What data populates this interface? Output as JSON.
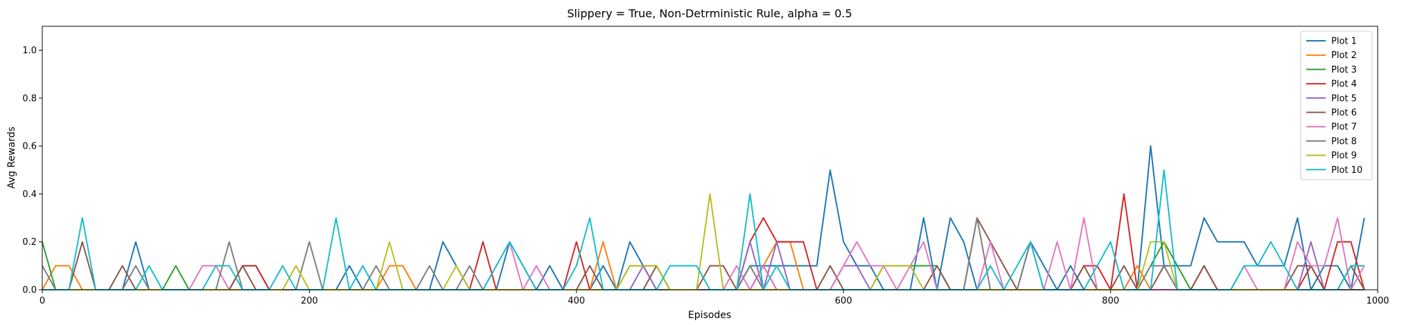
{
  "chart_data": {
    "type": "line",
    "title": "Slippery = True, Non-Detrministic Rule, alpha = 0.5",
    "xlabel": "Episodes",
    "ylabel": "Avg Rewards",
    "xlim": [
      0,
      1000
    ],
    "ylim": [
      0,
      1.1
    ],
    "xticks": [
      0,
      200,
      400,
      600,
      800,
      1000
    ],
    "yticks": [
      0.0,
      0.2,
      0.4,
      0.6,
      0.8,
      1.0
    ],
    "xtick_labels": [
      "0",
      "200",
      "400",
      "600",
      "800",
      "1000"
    ],
    "ytick_labels": [
      "0.0",
      "0.2",
      "0.4",
      "0.6",
      "0.8",
      "1.0"
    ],
    "grid": false,
    "legend_position": "top-right",
    "x": [
      0,
      10,
      20,
      30,
      40,
      50,
      60,
      70,
      80,
      90,
      100,
      110,
      120,
      130,
      140,
      150,
      160,
      170,
      180,
      190,
      200,
      210,
      220,
      230,
      240,
      250,
      260,
      270,
      280,
      290,
      300,
      310,
      320,
      330,
      340,
      350,
      360,
      370,
      380,
      390,
      400,
      410,
      420,
      430,
      440,
      450,
      460,
      470,
      480,
      490,
      500,
      510,
      520,
      530,
      540,
      550,
      560,
      570,
      580,
      590,
      600,
      610,
      620,
      630,
      640,
      650,
      660,
      670,
      680,
      690,
      700,
      710,
      720,
      730,
      740,
      750,
      760,
      770,
      780,
      790,
      800,
      810,
      820,
      830,
      840,
      850,
      860,
      870,
      880,
      890,
      900,
      910,
      920,
      930,
      940,
      950,
      960,
      970,
      980,
      990
    ],
    "series": [
      {
        "name": "Plot 1",
        "color": "#1f77b4",
        "values": [
          0,
          0,
          0,
          0,
          0,
          0,
          0,
          0.2,
          0,
          0,
          0,
          0,
          0,
          0,
          0,
          0.1,
          0.1,
          0,
          0,
          0,
          0,
          0,
          0,
          0.1,
          0,
          0,
          0,
          0,
          0,
          0,
          0.2,
          0.1,
          0,
          0,
          0,
          0.2,
          0.1,
          0,
          0.1,
          0,
          0,
          0,
          0.1,
          0,
          0.2,
          0.1,
          0.1,
          0,
          0,
          0,
          0,
          0,
          0,
          0.1,
          0.1,
          0.1,
          0.1,
          0.1,
          0.1,
          0.5,
          0.2,
          0.1,
          0.1,
          0,
          0,
          0,
          0.3,
          0,
          0.3,
          0.2,
          0,
          0,
          0,
          0,
          0.2,
          0.1,
          0,
          0.1,
          0,
          0,
          0,
          0,
          0,
          0.6,
          0.1,
          0.1,
          0.1,
          0.3,
          0.2,
          0.2,
          0.2,
          0.1,
          0.1,
          0.1,
          0.3,
          0,
          0.1,
          0.1,
          0,
          0.3
        ]
      },
      {
        "name": "Plot 2",
        "color": "#ff7f0e",
        "values": [
          0,
          0.1,
          0.1,
          0,
          0,
          0,
          0,
          0,
          0,
          0,
          0,
          0,
          0,
          0,
          0,
          0,
          0,
          0,
          0,
          0,
          0,
          0,
          0,
          0,
          0,
          0,
          0.1,
          0.1,
          0,
          0,
          0,
          0,
          0,
          0,
          0,
          0,
          0,
          0,
          0,
          0,
          0,
          0,
          0.2,
          0,
          0,
          0,
          0,
          0,
          0,
          0,
          0,
          0,
          0,
          0,
          0.1,
          0.2,
          0.2,
          0,
          0,
          0,
          0,
          0,
          0,
          0,
          0,
          0,
          0,
          0,
          0,
          0,
          0,
          0,
          0,
          0,
          0,
          0,
          0,
          0,
          0,
          0,
          0,
          0,
          0.1,
          0,
          0,
          0,
          0,
          0,
          0,
          0,
          0,
          0,
          0,
          0,
          0,
          0,
          0,
          0,
          0,
          0
        ]
      },
      {
        "name": "Plot 3",
        "color": "#2ca02c",
        "values": [
          0.2,
          0,
          0,
          0,
          0,
          0,
          0,
          0,
          0,
          0,
          0.1,
          0,
          0,
          0,
          0,
          0,
          0,
          0,
          0,
          0,
          0,
          0,
          0,
          0,
          0,
          0,
          0,
          0,
          0,
          0,
          0,
          0,
          0,
          0,
          0,
          0,
          0,
          0,
          0,
          0,
          0,
          0,
          0,
          0,
          0.1,
          0.1,
          0,
          0,
          0,
          0,
          0,
          0,
          0,
          0,
          0,
          0,
          0,
          0,
          0,
          0,
          0,
          0,
          0,
          0.1,
          0.1,
          0.1,
          0.1,
          0.1,
          0,
          0,
          0,
          0,
          0,
          0,
          0,
          0,
          0,
          0,
          0,
          0,
          0,
          0,
          0,
          0.1,
          0.2,
          0.1,
          0,
          0,
          0,
          0,
          0,
          0,
          0,
          0,
          0,
          0,
          0,
          0,
          0,
          0
        ]
      },
      {
        "name": "Plot 4",
        "color": "#d62728",
        "values": [
          0,
          0,
          0,
          0,
          0,
          0,
          0,
          0,
          0,
          0,
          0,
          0,
          0,
          0,
          0,
          0.1,
          0.1,
          0,
          0,
          0,
          0,
          0,
          0,
          0,
          0,
          0,
          0,
          0,
          0,
          0,
          0,
          0,
          0,
          0.2,
          0,
          0,
          0,
          0,
          0,
          0,
          0.2,
          0,
          0,
          0,
          0,
          0,
          0,
          0,
          0,
          0,
          0,
          0,
          0,
          0.2,
          0.3,
          0.2,
          0.2,
          0.2,
          0,
          0,
          0,
          0,
          0,
          0,
          0,
          0,
          0,
          0,
          0,
          0,
          0,
          0,
          0,
          0,
          0,
          0,
          0,
          0,
          0.1,
          0.1,
          0,
          0.4,
          0,
          0,
          0,
          0,
          0,
          0.1,
          0,
          0,
          0,
          0,
          0,
          0,
          0,
          0.1,
          0,
          0.2,
          0.2,
          0
        ]
      },
      {
        "name": "Plot 5",
        "color": "#9467bd",
        "values": [
          0,
          0,
          0,
          0,
          0,
          0,
          0,
          0,
          0,
          0,
          0,
          0,
          0,
          0,
          0,
          0,
          0,
          0,
          0,
          0,
          0,
          0,
          0,
          0,
          0,
          0,
          0,
          0,
          0,
          0,
          0,
          0,
          0,
          0,
          0,
          0,
          0,
          0,
          0,
          0,
          0,
          0,
          0,
          0,
          0,
          0.1,
          0,
          0,
          0,
          0,
          0,
          0,
          0,
          0.2,
          0,
          0.2,
          0,
          0,
          0,
          0,
          0.1,
          0.1,
          0,
          0,
          0,
          0,
          0,
          0,
          0,
          0,
          0,
          0,
          0,
          0,
          0,
          0,
          0,
          0,
          0,
          0,
          0,
          0,
          0,
          0,
          0,
          0,
          0,
          0,
          0,
          0,
          0,
          0,
          0,
          0,
          0,
          0.2,
          0,
          0,
          0,
          0
        ]
      },
      {
        "name": "Plot 6",
        "color": "#8c564b",
        "values": [
          0,
          0,
          0,
          0.2,
          0,
          0,
          0.1,
          0,
          0,
          0,
          0,
          0,
          0,
          0,
          0,
          0.1,
          0,
          0,
          0,
          0,
          0,
          0,
          0,
          0,
          0,
          0,
          0,
          0,
          0,
          0,
          0,
          0,
          0,
          0,
          0,
          0,
          0,
          0,
          0,
          0,
          0,
          0.1,
          0,
          0,
          0,
          0,
          0.1,
          0,
          0,
          0,
          0.1,
          0.1,
          0,
          0,
          0.1,
          0,
          0,
          0,
          0,
          0.1,
          0,
          0,
          0,
          0,
          0,
          0,
          0,
          0.1,
          0,
          0,
          0.3,
          0.2,
          0.1,
          0,
          0,
          0,
          0,
          0,
          0.1,
          0,
          0,
          0.1,
          0,
          0,
          0.1,
          0,
          0,
          0.1,
          0,
          0,
          0,
          0,
          0,
          0,
          0.1,
          0.1,
          0,
          0,
          0.1,
          0
        ]
      },
      {
        "name": "Plot 7",
        "color": "#e377c2",
        "values": [
          0,
          0,
          0,
          0,
          0,
          0,
          0,
          0,
          0,
          0,
          0,
          0,
          0.1,
          0.1,
          0,
          0,
          0,
          0,
          0,
          0,
          0,
          0,
          0,
          0,
          0,
          0,
          0,
          0,
          0,
          0,
          0,
          0,
          0,
          0,
          0.1,
          0.2,
          0,
          0.1,
          0,
          0,
          0,
          0,
          0,
          0,
          0,
          0,
          0,
          0,
          0,
          0,
          0,
          0,
          0.1,
          0,
          0.1,
          0,
          0,
          0,
          0,
          0,
          0.1,
          0.2,
          0.1,
          0.1,
          0,
          0.1,
          0.2,
          0,
          0,
          0,
          0,
          0.2,
          0,
          0,
          0,
          0,
          0.2,
          0,
          0.3,
          0,
          0,
          0,
          0,
          0,
          0,
          0,
          0,
          0,
          0,
          0,
          0.1,
          0,
          0,
          0,
          0.2,
          0.1,
          0.1,
          0.3,
          0,
          0.1
        ]
      },
      {
        "name": "Plot 8",
        "color": "#7f7f7f",
        "values": [
          0.1,
          0,
          0,
          0,
          0,
          0,
          0,
          0.1,
          0,
          0,
          0,
          0,
          0,
          0,
          0.2,
          0,
          0,
          0,
          0,
          0,
          0.2,
          0,
          0,
          0,
          0,
          0.1,
          0,
          0,
          0,
          0.1,
          0,
          0,
          0.1,
          0,
          0,
          0,
          0,
          0,
          0,
          0,
          0,
          0,
          0,
          0,
          0,
          0,
          0,
          0,
          0,
          0,
          0,
          0,
          0,
          0.1,
          0,
          0,
          0,
          0,
          0,
          0,
          0,
          0,
          0,
          0,
          0,
          0,
          0,
          0,
          0,
          0,
          0.3,
          0,
          0,
          0,
          0.2,
          0,
          0,
          0,
          0,
          0,
          0,
          0,
          0,
          0.1,
          0.1,
          0,
          0,
          0,
          0,
          0,
          0,
          0,
          0,
          0,
          0,
          0,
          0,
          0,
          0,
          0
        ]
      },
      {
        "name": "Plot 9",
        "color": "#bcbd22",
        "values": [
          0,
          0,
          0,
          0,
          0,
          0,
          0,
          0,
          0,
          0,
          0,
          0,
          0,
          0,
          0,
          0,
          0,
          0,
          0,
          0.1,
          0,
          0,
          0,
          0,
          0,
          0,
          0.2,
          0,
          0,
          0,
          0,
          0.1,
          0,
          0,
          0,
          0,
          0,
          0,
          0,
          0,
          0,
          0,
          0,
          0,
          0.1,
          0.1,
          0.1,
          0,
          0,
          0,
          0.4,
          0,
          0,
          0,
          0,
          0,
          0,
          0,
          0,
          0,
          0,
          0,
          0,
          0.1,
          0.1,
          0.1,
          0,
          0,
          0,
          0,
          0,
          0,
          0,
          0,
          0,
          0,
          0,
          0,
          0,
          0,
          0,
          0,
          0,
          0.2,
          0.2,
          0,
          0,
          0,
          0,
          0,
          0,
          0,
          0,
          0,
          0,
          0,
          0,
          0,
          0.1,
          0.1
        ]
      },
      {
        "name": "Plot 10",
        "color": "#17becf",
        "values": [
          0,
          0,
          0,
          0.3,
          0,
          0,
          0,
          0,
          0.1,
          0,
          0,
          0,
          0,
          0.1,
          0.1,
          0,
          0,
          0,
          0.1,
          0,
          0,
          0,
          0.3,
          0,
          0.1,
          0,
          0,
          0,
          0,
          0,
          0,
          0,
          0,
          0,
          0.1,
          0.2,
          0.1,
          0,
          0,
          0,
          0.1,
          0.3,
          0,
          0,
          0,
          0,
          0,
          0.1,
          0.1,
          0.1,
          0,
          0,
          0,
          0.4,
          0,
          0.1,
          0,
          0,
          0,
          0,
          0,
          0,
          0,
          0,
          0,
          0,
          0,
          0,
          0,
          0,
          0,
          0.1,
          0,
          0.1,
          0.2,
          0,
          0,
          0,
          0,
          0.1,
          0.2,
          0,
          0,
          0,
          0.5,
          0,
          0,
          0,
          0,
          0,
          0.1,
          0.1,
          0.2,
          0.1,
          0,
          0,
          0,
          0,
          0.1,
          0.1
        ]
      }
    ]
  }
}
